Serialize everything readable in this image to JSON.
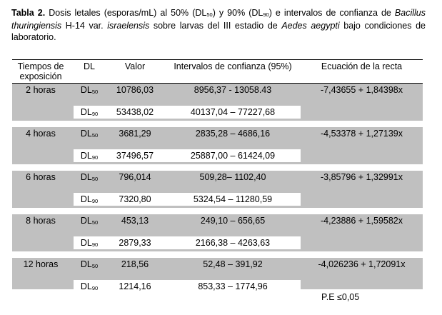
{
  "caption": {
    "label": "Tabla 2.",
    "text1": " Dosis letales (esporas/mL) al 50% (DL",
    "sub50": "50",
    "text2": ") y 90% (DL",
    "sub90": "90",
    "text3": ") e intervalos de confianza de ",
    "species": "Bacillus thuringiensis",
    "text4": " H-14 var. ",
    "variety": "israelensis",
    "text5": " sobre larvas del III estadio de ",
    "target": "Aedes aegypti",
    "text6": " bajo condiciones de laboratorio."
  },
  "headers": {
    "tiempo": "Tiempos de exposición",
    "dl": "DL",
    "valor": "Valor",
    "intervalos": "Intervalos de confianza (95%)",
    "ecuacion": "Ecuación de la recta"
  },
  "groups": [
    {
      "tiempo": "2 horas",
      "ecuacion": "-7,43655 + 1,84398x",
      "rows": [
        {
          "dl": "DL",
          "sub": "50",
          "valor": "10786,03",
          "intervalo": "8956,37 - 13058.43"
        },
        {
          "dl": "DL",
          "sub": "90",
          "valor": "53438,02",
          "intervalo": "40137,04 – 77227,68"
        }
      ]
    },
    {
      "tiempo": "4 horas",
      "ecuacion": "-4,53378 + 1,27139x",
      "rows": [
        {
          "dl": "DL",
          "sub": "50",
          "valor": "3681,29",
          "intervalo": "2835,28 – 4686,16"
        },
        {
          "dl": "DL",
          "sub": "90",
          "valor": "37496,57",
          "intervalo": "25887,00 – 61424,09"
        }
      ]
    },
    {
      "tiempo": "6 horas",
      "ecuacion": "-3,85796 + 1,32991x",
      "rows": [
        {
          "dl": "DL",
          "sub": "50",
          "valor": "796,014",
          "intervalo": "509,28– 1102,40"
        },
        {
          "dl": "DL",
          "sub": "90",
          "valor": "7320,80",
          "intervalo": "5324,54 – 11280,59"
        }
      ]
    },
    {
      "tiempo": "8 horas",
      "ecuacion": "-4,23886 + 1,59582x",
      "rows": [
        {
          "dl": "DL",
          "sub": "50",
          "valor": "453,13",
          "intervalo": "249,10 – 656,65"
        },
        {
          "dl": "DL",
          "sub": "90",
          "valor": "2879,33",
          "intervalo": "2166,38 – 4263,63"
        }
      ]
    },
    {
      "tiempo": "12 horas",
      "ecuacion": "-4,026236 + 1,72091x",
      "rows": [
        {
          "dl": "DL",
          "sub": "50",
          "valor": "218,56",
          "intervalo": "52,48 – 391,92"
        },
        {
          "dl": "DL",
          "sub": "90",
          "valor": "1214,16",
          "intervalo": "853,33 – 1774,96"
        }
      ]
    }
  ],
  "note": "P.E ≤0,05",
  "colors": {
    "band": "#c0c0c0",
    "row_highlight": "#ffffff"
  }
}
